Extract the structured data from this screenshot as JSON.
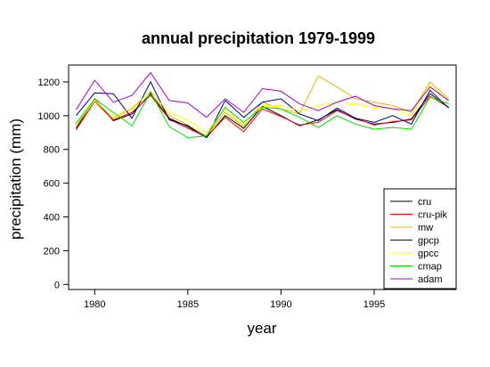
{
  "chart_data": {
    "type": "line",
    "title": "annual precipitation 1979-1999",
    "xlabel": "year",
    "ylabel": "precipitation (mm)",
    "x": [
      1979,
      1980,
      1981,
      1982,
      1983,
      1984,
      1985,
      1986,
      1987,
      1988,
      1989,
      1990,
      1991,
      1992,
      1993,
      1994,
      1995,
      1996,
      1997,
      1998,
      1999
    ],
    "xlim": [
      1978.6,
      1999.4
    ],
    "ylim": [
      -30,
      1300
    ],
    "xticks": [
      1980,
      1985,
      1990,
      1995
    ],
    "yticks": [
      0,
      200,
      400,
      600,
      800,
      1000,
      1200
    ],
    "grid": false,
    "legend_position": "bottom-right",
    "series": [
      {
        "name": "cru",
        "color": "#000000",
        "values": [
          925,
          1100,
          970,
          1010,
          1130,
          985,
          935,
          870,
          1000,
          925,
          1055,
          1000,
          940,
          975,
          1035,
          980,
          950,
          960,
          980,
          1130,
          1050
        ]
      },
      {
        "name": "cru-pik",
        "color": "#ff0000",
        "values": [
          915,
          1085,
          975,
          1020,
          1120,
          980,
          925,
          875,
          990,
          905,
          1040,
          995,
          945,
          960,
          1030,
          985,
          945,
          965,
          975,
          1115,
          1050
        ]
      },
      {
        "name": "mw",
        "color": "#e6b800",
        "values": [
          940,
          1095,
          985,
          1040,
          1145,
          1000,
          945,
          880,
          1020,
          935,
          1080,
          1040,
          1010,
          1235,
          1170,
          1100,
          1080,
          1060,
          1020,
          1200,
          1100
        ]
      },
      {
        "name": "gpcp",
        "color": "#000080",
        "values": [
          1000,
          1135,
          1130,
          985,
          1200,
          975,
          940,
          870,
          1090,
          990,
          1080,
          1100,
          1010,
          970,
          1045,
          985,
          960,
          1000,
          950,
          1150,
          1045
        ]
      },
      {
        "name": "gpcc",
        "color": "#ffff00",
        "values": [
          945,
          1090,
          990,
          1050,
          1140,
          1020,
          975,
          900,
          1040,
          945,
          1060,
          1060,
          1030,
          1060,
          1080,
          1070,
          1050,
          1040,
          1000,
          1190,
          1080
        ]
      },
      {
        "name": "cmap",
        "color": "#00dd00",
        "values": [
          955,
          1100,
          1020,
          940,
          1140,
          935,
          870,
          880,
          1050,
          960,
          1050,
          1040,
          990,
          930,
          1000,
          950,
          920,
          930,
          920,
          1110,
          1070
        ]
      },
      {
        "name": "adam",
        "color": "#aa00cc",
        "values": [
          1035,
          1210,
          1080,
          1120,
          1255,
          1090,
          1075,
          990,
          1100,
          1020,
          1160,
          1145,
          1070,
          1030,
          1080,
          1115,
          1060,
          1040,
          1030,
          1170,
          1090
        ]
      }
    ]
  }
}
